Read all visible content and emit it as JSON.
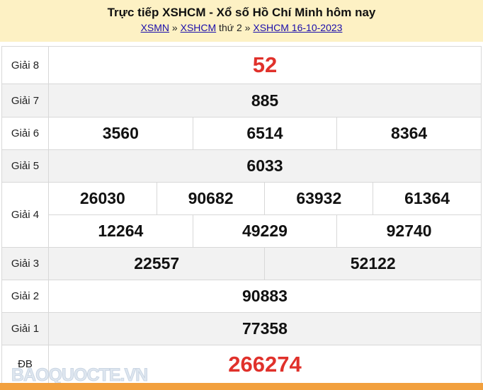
{
  "header": {
    "title": "Trực tiếp XSHCM - Xổ số Hồ Chí Minh hôm nay",
    "crumb1": "XSMN",
    "sep1": " » ",
    "crumb2": "XSHCM",
    "day": " thứ 2 » ",
    "crumb3": "XSHCM 16-10-2023"
  },
  "results": {
    "g8": {
      "label": "Giải 8",
      "values": [
        "52"
      ]
    },
    "g7": {
      "label": "Giải 7",
      "values": [
        "885"
      ]
    },
    "g6": {
      "label": "Giải 6",
      "values": [
        "3560",
        "6514",
        "8364"
      ]
    },
    "g5": {
      "label": "Giải 5",
      "values": [
        "6033"
      ]
    },
    "g4": {
      "label": "Giải 4",
      "values": [
        "26030",
        "90682",
        "63932",
        "61364",
        "12264",
        "49229",
        "92740"
      ]
    },
    "g3": {
      "label": "Giải 3",
      "values": [
        "22557",
        "52122"
      ]
    },
    "g2": {
      "label": "Giải 2",
      "values": [
        "90883"
      ]
    },
    "g1": {
      "label": "Giải 1",
      "values": [
        "77358"
      ]
    },
    "db": {
      "label": "ĐB",
      "values": [
        "266274"
      ]
    }
  },
  "watermark": "BAOQUOCTE.VN",
  "colors": {
    "header_bg": "#fdf1c4",
    "highlight": "#e0312b",
    "footer_bar": "#f2a03e"
  }
}
